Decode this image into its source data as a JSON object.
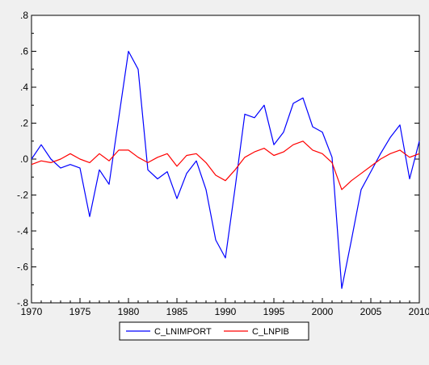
{
  "chart_data": {
    "type": "line",
    "title": "",
    "xlabel": "",
    "ylabel": "",
    "xlim": [
      1970,
      2010
    ],
    "ylim": [
      -0.8,
      0.8
    ],
    "x_ticks": [
      1970,
      1975,
      1980,
      1985,
      1990,
      1995,
      2000,
      2005,
      2010
    ],
    "y_ticks": [
      0.8,
      0.6,
      0.4,
      0.2,
      0.0,
      -0.2,
      -0.4,
      -0.6,
      -0.8
    ],
    "x_tick_labels": [
      "1970",
      "1975",
      "1980",
      "1985",
      "1990",
      "1995",
      "2000",
      "2005",
      "2010"
    ],
    "y_tick_labels": [
      ".8",
      ".6",
      ".4",
      ".2",
      ".0",
      "-.2",
      "-.4",
      "-.6",
      "-.8"
    ],
    "grid": false,
    "legend_position": "bottom",
    "x": [
      1970,
      1971,
      1972,
      1973,
      1974,
      1975,
      1976,
      1977,
      1978,
      1979,
      1980,
      1981,
      1982,
      1983,
      1984,
      1985,
      1986,
      1987,
      1988,
      1989,
      1990,
      1991,
      1992,
      1993,
      1994,
      1995,
      1996,
      1997,
      1998,
      1999,
      2000,
      2001,
      2002,
      2003,
      2004,
      2005,
      2006,
      2007,
      2008,
      2009,
      2010
    ],
    "series": [
      {
        "name": "C_LNIMPORT",
        "color": "#0000ff",
        "values": [
          0.0,
          0.08,
          0.0,
          -0.05,
          -0.03,
          -0.05,
          -0.32,
          -0.06,
          -0.14,
          0.23,
          0.6,
          0.5,
          -0.06,
          -0.11,
          -0.07,
          -0.22,
          -0.08,
          -0.01,
          -0.17,
          -0.45,
          -0.55,
          -0.16,
          0.25,
          0.23,
          0.3,
          0.08,
          0.15,
          0.31,
          0.34,
          0.18,
          0.15,
          0.01,
          -0.72,
          -0.45,
          -0.17,
          -0.07,
          0.03,
          0.12,
          0.19,
          -0.11,
          0.1
        ]
      },
      {
        "name": "C_LNPIB",
        "color": "#ff0000",
        "values": [
          -0.03,
          -0.01,
          -0.02,
          0.0,
          0.03,
          0.0,
          -0.02,
          0.03,
          -0.01,
          0.05,
          0.05,
          0.01,
          -0.02,
          0.01,
          0.03,
          -0.04,
          0.02,
          0.03,
          -0.02,
          -0.09,
          -0.12,
          -0.06,
          0.01,
          0.04,
          0.06,
          0.02,
          0.04,
          0.08,
          0.1,
          0.05,
          0.03,
          -0.02,
          -0.17,
          -0.12,
          -0.08,
          -0.04,
          0.0,
          0.03,
          0.05,
          0.01,
          0.03
        ]
      }
    ]
  }
}
